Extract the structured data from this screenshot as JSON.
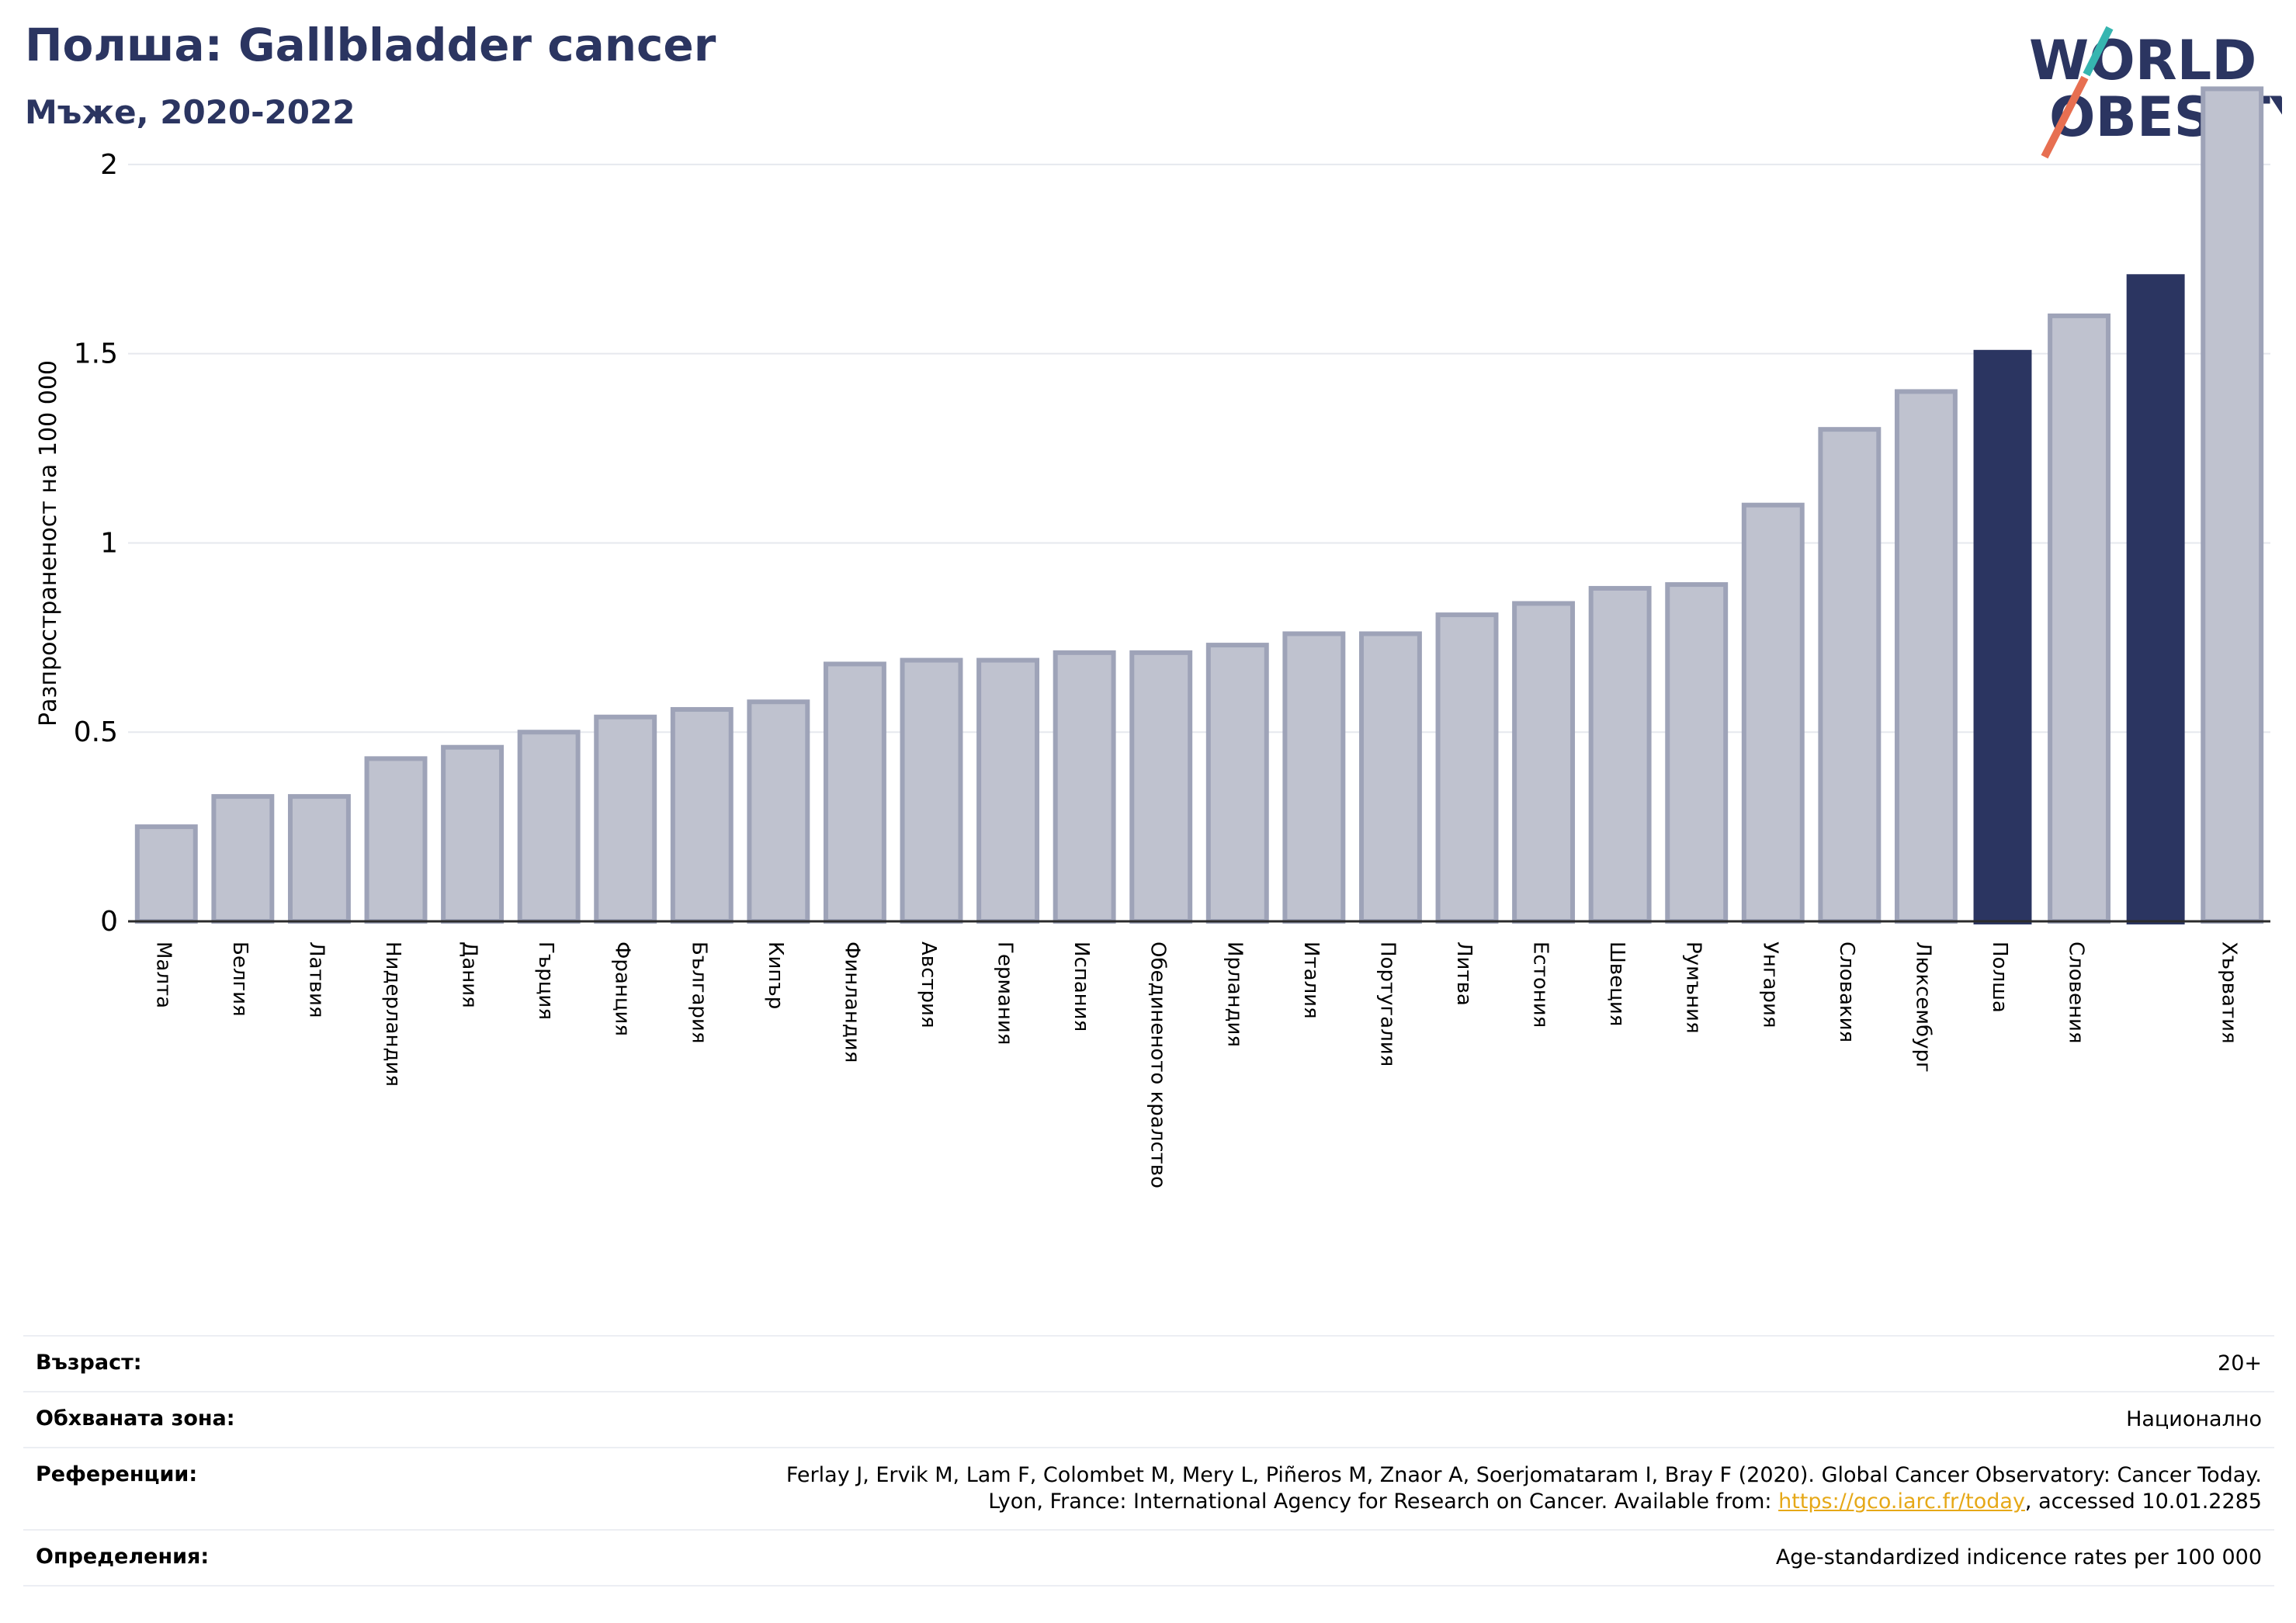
{
  "header": {
    "title": "Полша: Gallbladder cancer",
    "subtitle": "Мъже, 2020-2022"
  },
  "logo": {
    "line1": "WORLD",
    "line2": "OBESITY",
    "text_color": "#2b3561",
    "slash_color_top": "#36b5b0",
    "slash_color_bottom": "#e76f51"
  },
  "chart_data": {
    "type": "bar",
    "ylabel": "Разпространеност  на 100 000",
    "ylim": [
      0,
      2.25
    ],
    "yticks": [
      0,
      0.5,
      1,
      1.5,
      2
    ],
    "ytick_labels": [
      "0",
      "0.5",
      "1",
      "1.5",
      "2"
    ],
    "grid": true,
    "colors": {
      "default_fill": "#bfc2cf",
      "default_stroke": "#9ea3b8",
      "highlight": "#2b3561"
    },
    "categories": [
      "Малта",
      "Белгия",
      "Латвия",
      "Нидерландия",
      "Дания",
      "Гърция",
      "Франция",
      "България",
      "Кипър",
      "Финландия",
      "Австрия",
      "Германия",
      "Испания",
      "Обединеното кралство",
      "Ирландия",
      "Италия",
      "Португалия",
      "Литва",
      "Естония",
      "Швеция",
      "Румъния",
      "Унгария",
      "Словакия",
      "Люксембург",
      "Полша",
      "Словения",
      "",
      "Хърватия"
    ],
    "values": [
      0.25,
      0.33,
      0.33,
      0.43,
      0.46,
      0.5,
      0.54,
      0.56,
      0.58,
      0.68,
      0.69,
      0.69,
      0.71,
      0.71,
      0.73,
      0.76,
      0.76,
      0.81,
      0.84,
      0.88,
      0.89,
      1.1,
      1.3,
      1.4,
      1.51,
      1.6,
      1.71,
      2.2
    ],
    "highlighted": [
      24,
      26
    ]
  },
  "info": {
    "rows": [
      {
        "label": "Възраст:",
        "value": "20+"
      },
      {
        "label": "Обхваната зона:",
        "value": "Национално"
      },
      {
        "label": "Референции:",
        "value_line1": "Ferlay J, Ervik M, Lam F, Colombet M, Mery L, Piñeros M, Znaor A, Soerjomataram I, Bray F (2020). Global Cancer Observatory: Cancer Today.",
        "value_line2_pre": "Lyon, France: International Agency for Research on Cancer. Available from: ",
        "link": "https://gco.iarc.fr/today",
        "value_line2_post": ", accessed 10.01.2285"
      },
      {
        "label": "Определения:",
        "value": "Age-standardized indicence rates per 100 000"
      }
    ]
  }
}
